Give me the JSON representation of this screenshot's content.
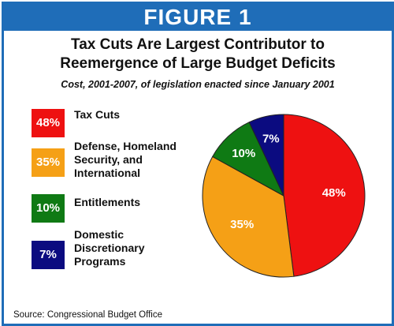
{
  "figure_label": "FIGURE 1",
  "title_line1": "Tax Cuts Are Largest Contributor to",
  "title_line2": "Reemergence of Large Budget Deficits",
  "subtitle": "Cost, 2001-2007, of legislation enacted since January 2001",
  "source": "Source: Congressional Budget Office",
  "legend": [
    {
      "badge": "48%",
      "lines": [
        "Tax Cuts"
      ]
    },
    {
      "badge": "35%",
      "lines": [
        "Defense, Homeland",
        "Security, and",
        "International"
      ]
    },
    {
      "badge": "10%",
      "lines": [
        "Entitlements"
      ]
    },
    {
      "badge": "7%",
      "lines": [
        "Domestic",
        "Discretionary",
        "Programs"
      ]
    }
  ],
  "chart_data": {
    "type": "pie",
    "title": "Tax Cuts Are Largest Contributor to Reemergence of Large Budget Deficits",
    "subtitle": "Cost, 2001-2007, of legislation enacted since January 2001",
    "categories": [
      "Tax Cuts",
      "Defense, Homeland Security, and International",
      "Entitlements",
      "Domestic Discretionary Programs"
    ],
    "values": [
      48,
      35,
      10,
      7
    ],
    "labels": [
      "48%",
      "35%",
      "10%",
      "7%"
    ],
    "colors": [
      "#ee1111",
      "#f5a016",
      "#0f7a14",
      "#0b0b80"
    ],
    "legend_position": "left"
  }
}
